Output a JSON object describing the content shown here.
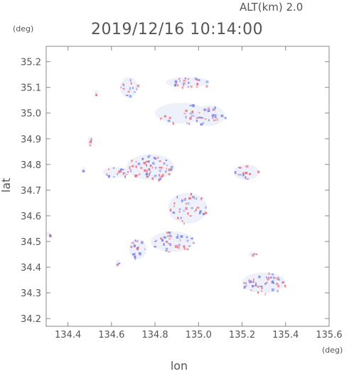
{
  "header": {
    "altitude_label": "ALT(km)  2.0",
    "datetime": "2019/12/16 10:14:00"
  },
  "axes": {
    "y_unit": "(deg)",
    "x_unit": "(deg)",
    "ylabel": "lat",
    "xlabel": "lon"
  },
  "chart_data": {
    "type": "heatmap",
    "title": "2019/12/16 10:14:00",
    "subtitle": "ALT(km)  2.0",
    "xlabel": "lon",
    "ylabel": "lat",
    "x_unit": "(deg)",
    "y_unit": "(deg)",
    "xlim": [
      134.3,
      135.6
    ],
    "ylim": [
      34.17,
      35.26
    ],
    "x_ticks": [
      134.4,
      134.6,
      134.8,
      135.0,
      135.2,
      135.4,
      135.6
    ],
    "x_tick_labels": [
      "134.4",
      "134.6",
      "134.8",
      "135.0",
      "135.2",
      "135.4",
      "135.6"
    ],
    "y_ticks": [
      34.2,
      34.3,
      34.4,
      34.5,
      34.6,
      34.7,
      34.8,
      34.9,
      35.0,
      35.1,
      35.2
    ],
    "y_tick_labels": [
      "34.2",
      "34.3",
      "34.4",
      "34.5",
      "34.6",
      "34.7",
      "34.8",
      "34.9",
      "35.0",
      "35.1",
      "35.2"
    ],
    "colors": {
      "positive": "#e8707a",
      "negative": "#7a82e8",
      "neutral": "#eef0fa"
    },
    "echo_regions": [
      {
        "lon": 134.95,
        "lat": 35.12,
        "rx": 0.1,
        "ry": 0.02,
        "density": 22
      },
      {
        "lon": 134.92,
        "lat": 35.0,
        "rx": 0.12,
        "ry": 0.04,
        "density": 26
      },
      {
        "lon": 135.05,
        "lat": 34.99,
        "rx": 0.07,
        "ry": 0.04,
        "density": 26
      },
      {
        "lon": 134.68,
        "lat": 35.1,
        "rx": 0.04,
        "ry": 0.04,
        "density": 14
      },
      {
        "lon": 134.78,
        "lat": 34.79,
        "rx": 0.11,
        "ry": 0.05,
        "density": 60
      },
      {
        "lon": 134.62,
        "lat": 34.77,
        "rx": 0.06,
        "ry": 0.02,
        "density": 18
      },
      {
        "lon": 135.22,
        "lat": 34.77,
        "rx": 0.06,
        "ry": 0.03,
        "density": 16
      },
      {
        "lon": 134.95,
        "lat": 34.63,
        "rx": 0.09,
        "ry": 0.06,
        "density": 38
      },
      {
        "lon": 134.88,
        "lat": 34.5,
        "rx": 0.1,
        "ry": 0.04,
        "density": 36
      },
      {
        "lon": 134.72,
        "lat": 34.47,
        "rx": 0.04,
        "ry": 0.04,
        "density": 16
      },
      {
        "lon": 135.3,
        "lat": 34.34,
        "rx": 0.1,
        "ry": 0.04,
        "density": 46
      },
      {
        "lon": 134.5,
        "lat": 34.89,
        "rx": 0.01,
        "ry": 0.02,
        "density": 4
      },
      {
        "lon": 134.31,
        "lat": 34.53,
        "rx": 0.01,
        "ry": 0.01,
        "density": 3
      },
      {
        "lon": 134.63,
        "lat": 34.42,
        "rx": 0.01,
        "ry": 0.01,
        "density": 2
      },
      {
        "lon": 134.47,
        "lat": 34.78,
        "rx": 0.01,
        "ry": 0.01,
        "density": 2
      },
      {
        "lon": 135.25,
        "lat": 34.45,
        "rx": 0.02,
        "ry": 0.01,
        "density": 3
      },
      {
        "lon": 134.53,
        "lat": 35.08,
        "rx": 0.01,
        "ry": 0.01,
        "density": 2
      }
    ]
  }
}
